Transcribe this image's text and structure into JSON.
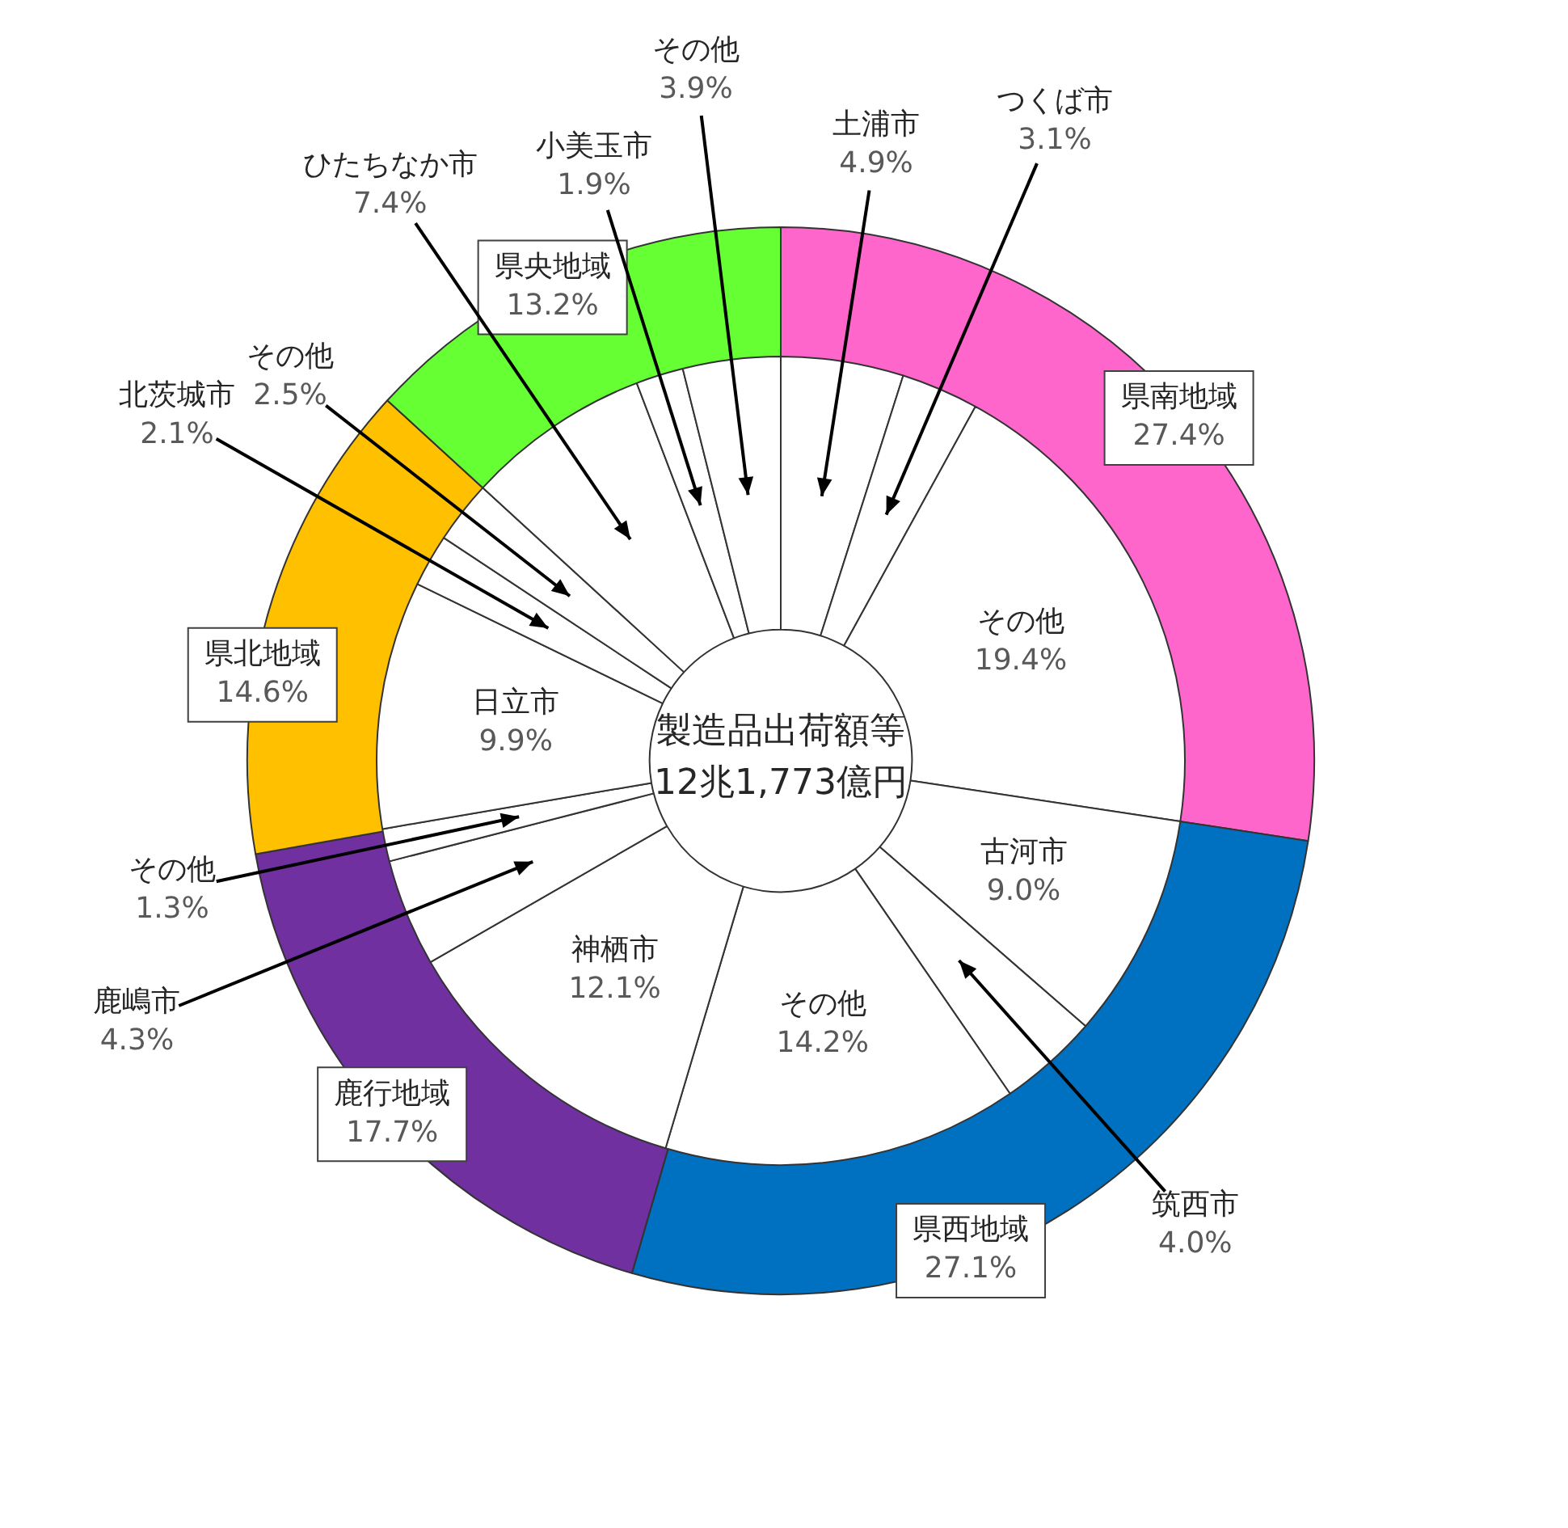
{
  "chart_data": [
    {
      "type": "donut",
      "categories": [
        "県南地域",
        "県西地域",
        "鹿行地域",
        "県北地域",
        "県央地域"
      ],
      "values": [
        27.4,
        27.1,
        17.7,
        14.6,
        13.2
      ],
      "value_labels": [
        "27.4%",
        "27.1%",
        "17.7%",
        "14.6%",
        "13.2%"
      ],
      "colors": [
        "#ff66cc",
        "#0070c0",
        "#7030a0",
        "#ffc000",
        "#66ff33"
      ]
    },
    {
      "type": "donut",
      "title": "製造品出荷額等",
      "subtitle": "12兆1,773億円",
      "categories": [
        "土浦市",
        "つくば市",
        "その他",
        "古河市",
        "筑西市",
        "その他",
        "神栖市",
        "鹿嶋市",
        "その他",
        "日立市",
        "北茨城市",
        "その他",
        "ひたちなか市",
        "小美玉市",
        "その他"
      ],
      "values": [
        4.9,
        3.1,
        19.4,
        9.0,
        4.0,
        14.2,
        12.1,
        4.3,
        1.3,
        9.9,
        2.1,
        2.5,
        7.4,
        1.9,
        3.9
      ],
      "value_labels": [
        "4.9%",
        "3.1%",
        "19.4%",
        "9.0%",
        "4.0%",
        "14.2%",
        "12.1%",
        "4.3%",
        "1.3%",
        "9.9%",
        "2.1%",
        "2.5%",
        "7.4%",
        "1.9%",
        "3.9%"
      ],
      "colors": [
        "#ffffff",
        "#ffffff",
        "#ffffff",
        "#ffffff",
        "#ffffff",
        "#ffffff",
        "#ffffff",
        "#ffffff",
        "#ffffff",
        "#ffffff",
        "#ffffff",
        "#ffffff",
        "#ffffff",
        "#ffffff",
        "#ffffff"
      ]
    }
  ]
}
